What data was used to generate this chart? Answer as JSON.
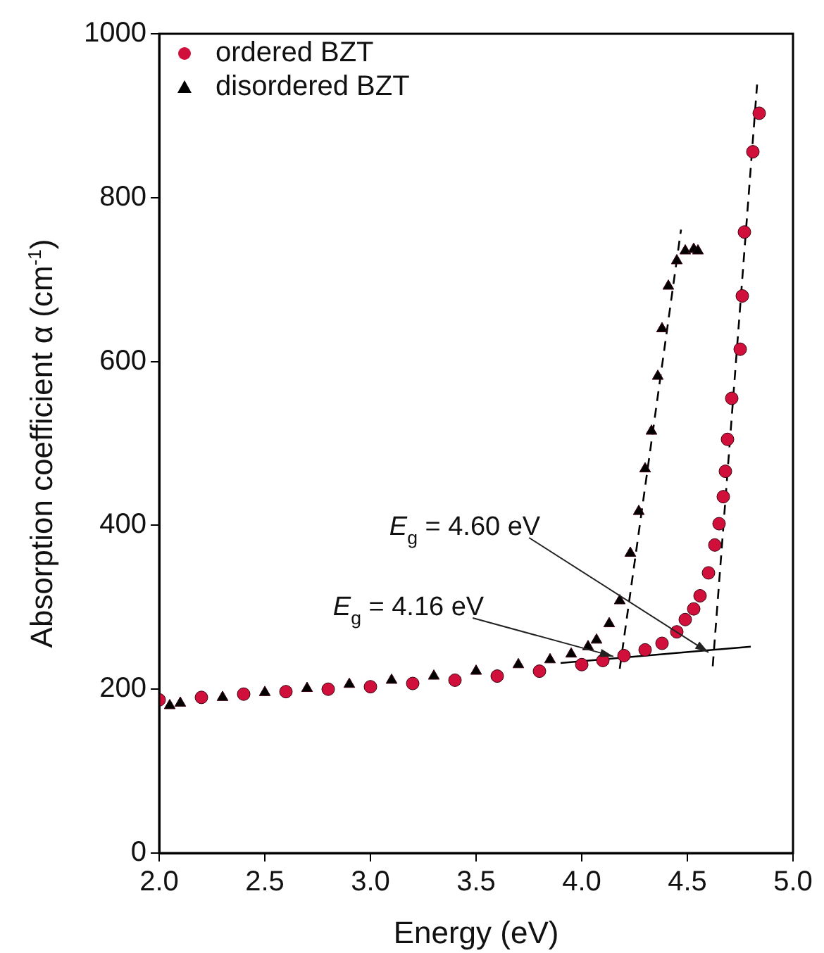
{
  "chart_data": {
    "type": "scatter",
    "xlabel": "Energy (eV)",
    "ylabel": "Absorption coefficient α (cm$^{-1}$)",
    "xlim": [
      2,
      5
    ],
    "xticks": [
      {
        "value": 2,
        "label": "2.0"
      },
      {
        "value": 2.5,
        "label": "2.5"
      },
      {
        "value": 3,
        "label": "3.0"
      },
      {
        "value": 3.5,
        "label": "3.5"
      },
      {
        "value": 4,
        "label": "4.0"
      },
      {
        "value": 4.5,
        "label": "4.5"
      },
      {
        "value": 5,
        "label": "5.0"
      }
    ],
    "ylim": [
      0,
      1000
    ],
    "yticks": [
      0,
      200,
      400,
      600,
      800,
      1000
    ],
    "grid": false,
    "legend": "top left",
    "series": [
      {
        "name": "ordered BZT",
        "type": "scatter",
        "marker": "circle",
        "color": "#d0103a",
        "x": [
          2.0,
          2.2,
          2.4,
          2.6,
          2.8,
          3.0,
          3.2,
          3.4,
          3.6,
          3.8,
          4.0,
          4.1,
          4.2,
          4.3,
          4.38,
          4.45,
          4.49,
          4.53,
          4.56,
          4.6,
          4.63,
          4.65,
          4.67,
          4.68,
          4.69,
          4.71,
          4.75,
          4.76,
          4.77,
          4.81,
          4.84
        ],
        "values": [
          187,
          190,
          194,
          197,
          200,
          203,
          207,
          211,
          216,
          222,
          230,
          235,
          241,
          248,
          256,
          270,
          285,
          298,
          314,
          342,
          376,
          402,
          435,
          466,
          505,
          555,
          615,
          680,
          758,
          856,
          903
        ]
      },
      {
        "name": "disordered BZT",
        "type": "scatter",
        "marker": "triangle",
        "color": "#000000",
        "x": [
          2.05,
          2.1,
          2.3,
          2.5,
          2.7,
          2.9,
          3.1,
          3.3,
          3.5,
          3.7,
          3.85,
          3.95,
          4.03,
          4.07,
          4.13,
          4.18,
          4.23,
          4.27,
          4.3,
          4.33,
          4.36,
          4.38,
          4.41,
          4.45,
          4.49,
          4.53,
          4.55
        ],
        "values": [
          180,
          183,
          190,
          196,
          201,
          206,
          211,
          216,
          222,
          230,
          236,
          243,
          252,
          260,
          280,
          308,
          366,
          417,
          469,
          515,
          582,
          640,
          692,
          723,
          735,
          737,
          735
        ]
      },
      {
        "type": "line",
        "marker": "none",
        "line_style": "solid",
        "color": "#000000",
        "x": [
          3.9,
          4.8
        ],
        "values": [
          232,
          252
        ]
      },
      {
        "type": "line",
        "marker": "none",
        "line_style": "dashed",
        "color": "#000000",
        "x": [
          4.18,
          4.47
        ],
        "values": [
          225,
          761
        ]
      },
      {
        "type": "line",
        "marker": "none",
        "line_style": "dashed",
        "color": "#000000",
        "x": [
          4.62,
          4.83
        ],
        "values": [
          228,
          938
        ]
      }
    ],
    "annotations": [
      {
        "text": "E$_{g}$ = 4.60 eV",
        "x": 4.6,
        "y": 245
      },
      {
        "text": "E$_{g}$ = 4.16 eV",
        "x": 4.15,
        "y": 240
      }
    ]
  }
}
